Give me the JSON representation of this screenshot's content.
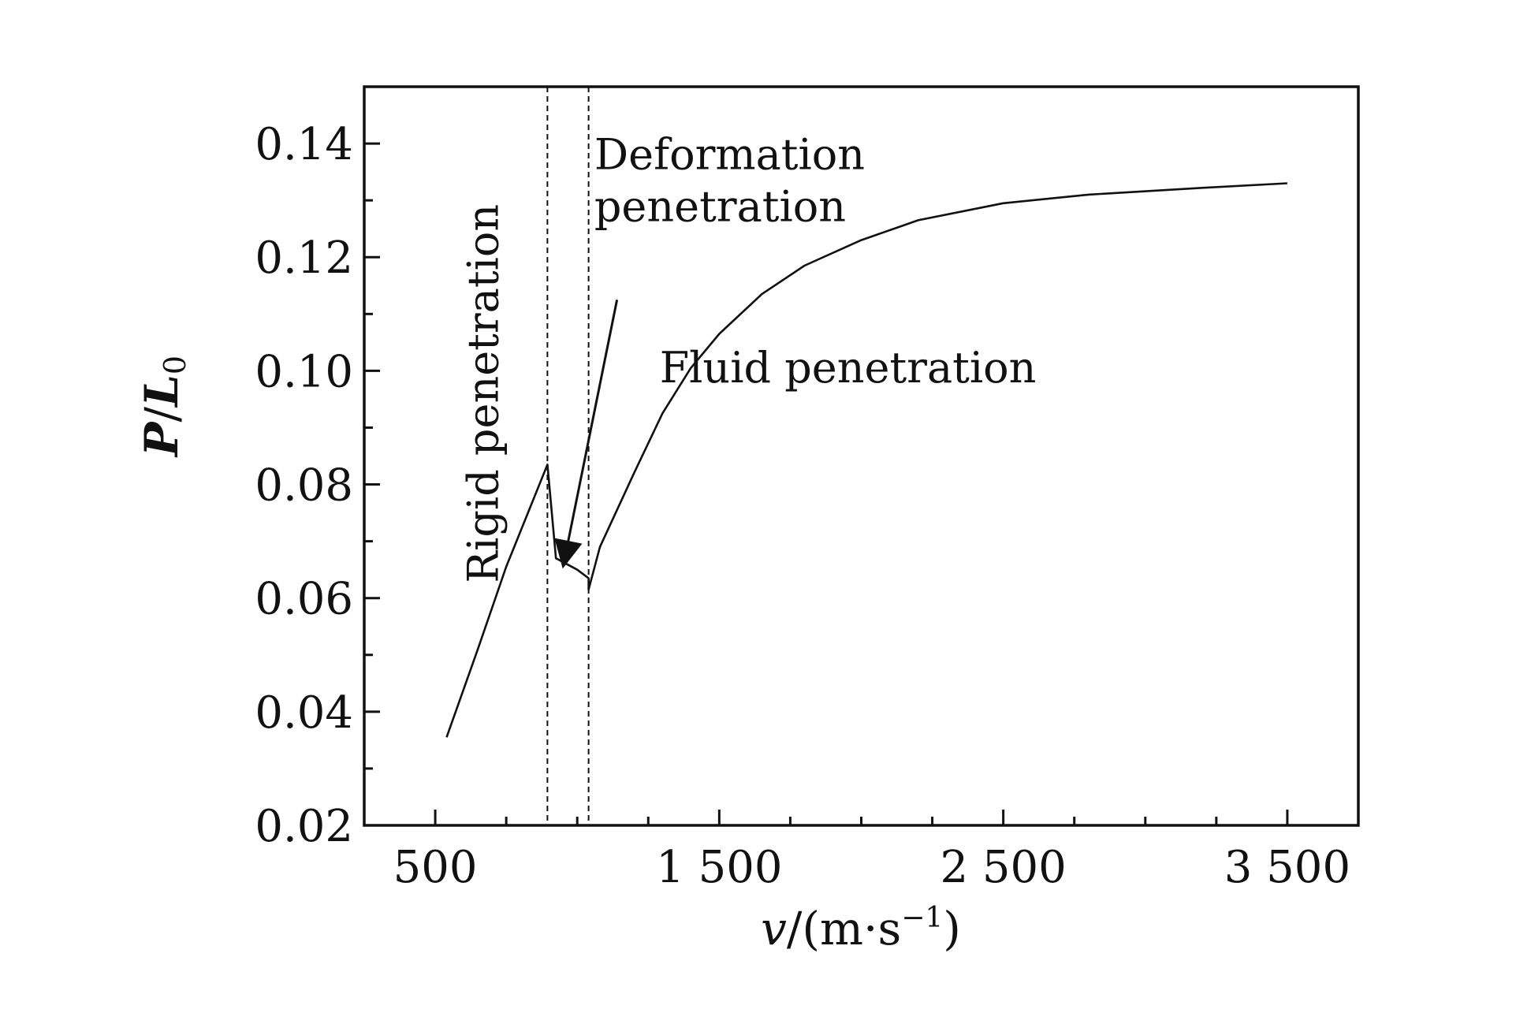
{
  "chart_data": {
    "type": "line",
    "title": "",
    "xlabel": "v/(m·s⁻¹)",
    "xlabel_parts": {
      "var": "v",
      "rest": "/(m·s",
      "sup": "−1",
      "end": ")"
    },
    "ylabel": "P/L0",
    "ylabel_parts": {
      "p": "P",
      "slash": "/",
      "l": "L",
      "sub": "0"
    },
    "xlim": [
      250,
      3750
    ],
    "ylim": [
      0.02,
      0.15
    ],
    "x_ticks": [
      500,
      1500,
      2500,
      3500
    ],
    "x_tick_labels": [
      "500",
      "1 500",
      "2 500",
      "3 500"
    ],
    "x_minor_ticks": [
      750,
      1000,
      1250,
      1750,
      2000,
      2250,
      2750,
      3000,
      3250
    ],
    "y_ticks": [
      0.02,
      0.04,
      0.06,
      0.08,
      0.1,
      0.12,
      0.14
    ],
    "y_tick_labels": [
      "0.02",
      "0.04",
      "0.06",
      "0.08",
      "0.10",
      "0.12",
      "0.14"
    ],
    "y_minor_ticks": [
      0.03,
      0.05,
      0.07,
      0.09,
      0.11,
      0.13
    ],
    "grid": false,
    "series": [
      {
        "values": [
          [
            540,
            0.0355
          ],
          [
            650,
            0.051
          ],
          [
            750,
            0.0655
          ],
          [
            895,
            0.0835
          ],
          [
            925,
            0.067
          ],
          [
            1000,
            0.065
          ],
          [
            1040,
            0.0635
          ],
          [
            1040,
            0.0615
          ],
          [
            1080,
            0.069
          ],
          [
            1200,
            0.082
          ],
          [
            1300,
            0.0925
          ],
          [
            1400,
            0.1005
          ],
          [
            1500,
            0.1065
          ],
          [
            1650,
            0.1135
          ],
          [
            1800,
            0.1185
          ],
          [
            2000,
            0.123
          ],
          [
            2200,
            0.1265
          ],
          [
            2500,
            0.1295
          ],
          [
            2800,
            0.131
          ],
          [
            3200,
            0.1322
          ],
          [
            3500,
            0.133
          ]
        ]
      }
    ],
    "vlines": [
      {
        "x": 895,
        "style": "dashed"
      },
      {
        "x": 1040,
        "style": "dashed"
      }
    ],
    "annotations": [
      {
        "text": "Rigid penetration",
        "x": 720,
        "y": 0.096,
        "rotation": -90
      },
      {
        "lines": [
          "Deformation",
          "penetration"
        ],
        "x": 1060,
        "y": 0.1355
      },
      {
        "text": "Fluid penetration",
        "x": 1290,
        "y": 0.098
      }
    ],
    "arrow": {
      "from": [
        1140,
        0.1125
      ],
      "to": [
        952,
        0.066
      ]
    }
  }
}
